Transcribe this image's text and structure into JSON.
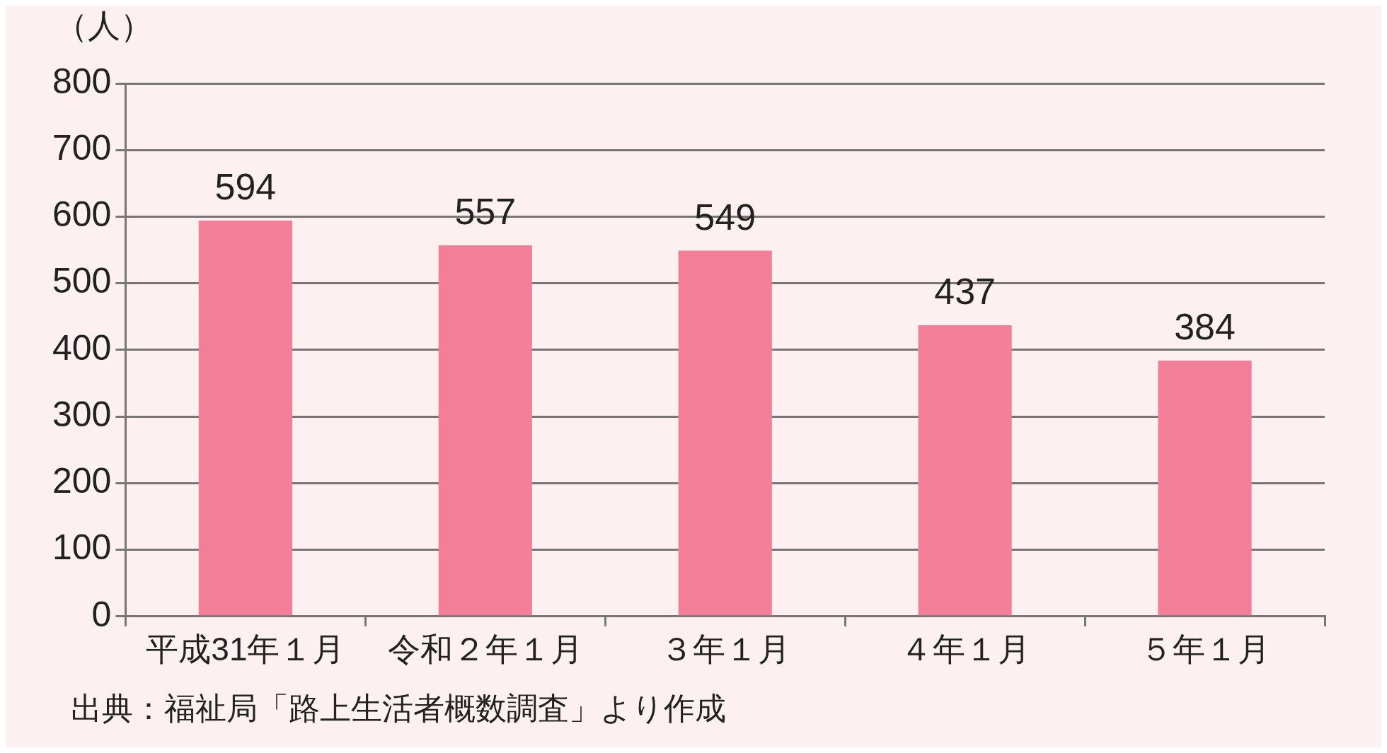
{
  "chart_data": {
    "type": "bar",
    "ylabel": "（人）",
    "categories": [
      "平成31年１月",
      "令和２年１月",
      "３年１月",
      "４年１月",
      "５年１月"
    ],
    "values": [
      594,
      557,
      549,
      437,
      384
    ],
    "color": "#f27e98",
    "ylim": [
      0,
      800
    ],
    "yticks": [
      0,
      100,
      200,
      300,
      400,
      500,
      600,
      700,
      800
    ],
    "grid": "y",
    "data_labels": true,
    "annotations": [
      "出典：福祉局「路上生活者概数調査」より作成"
    ]
  }
}
